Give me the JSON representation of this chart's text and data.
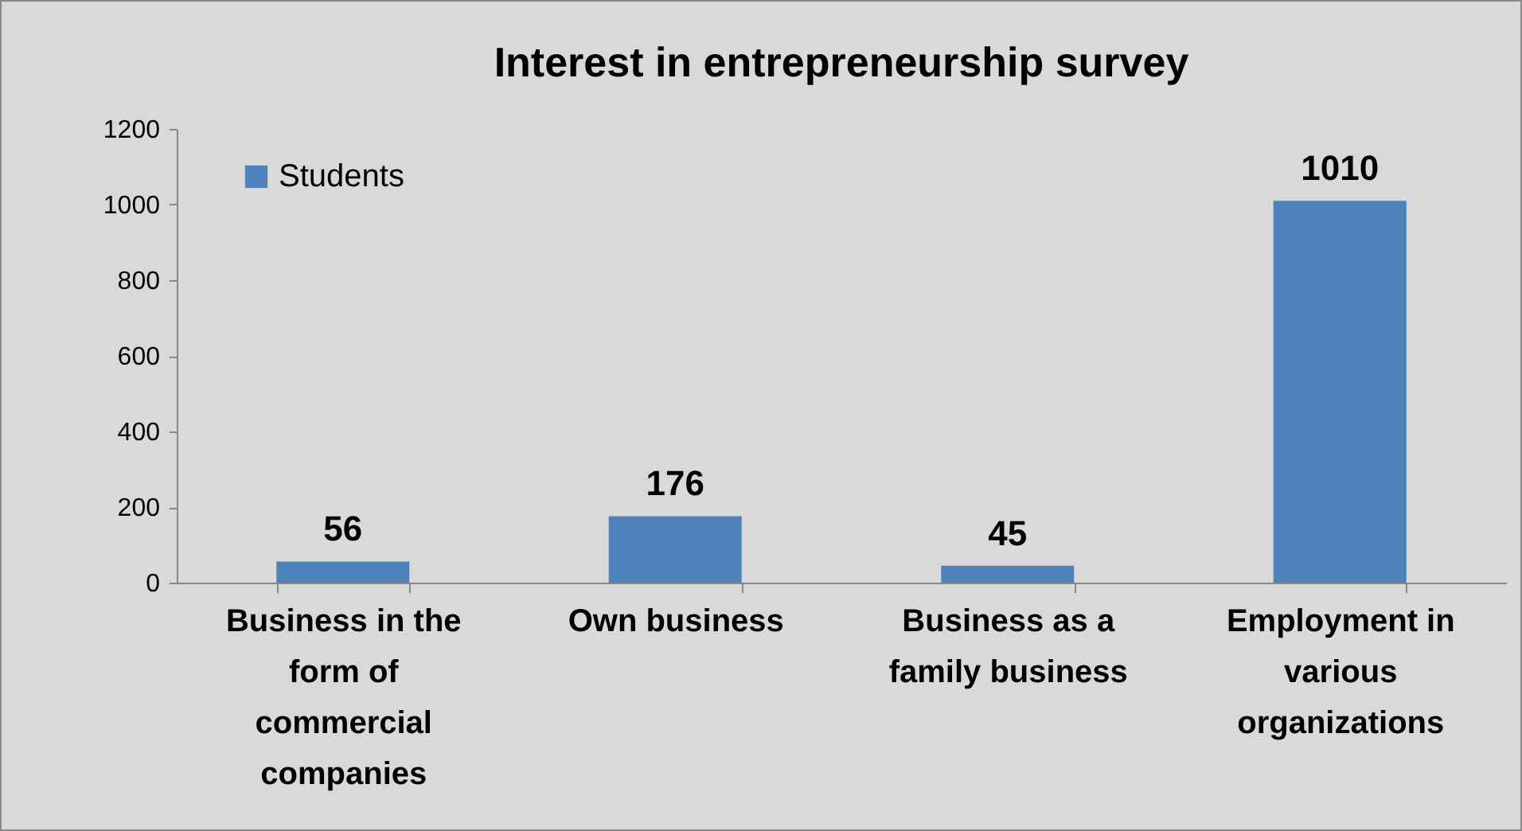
{
  "chart_data": {
    "type": "bar",
    "title": "Interest in entrepreneurship survey",
    "categories": [
      "Business in the form of commercial companies",
      "Own business",
      "Business as a family business",
      "Employment in various organizations"
    ],
    "series": [
      {
        "name": "Students",
        "color": "#4f81bd",
        "values": [
          56,
          176,
          45,
          1010
        ]
      }
    ],
    "ylim": [
      0,
      1200
    ],
    "yticks": [
      0,
      200,
      400,
      600,
      800,
      1000,
      1200
    ],
    "data_labels": true,
    "legend": "top left"
  }
}
